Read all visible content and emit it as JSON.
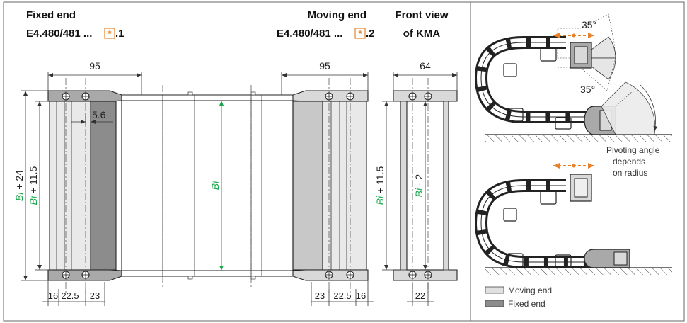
{
  "headers": {
    "fixed_end": "Fixed end",
    "fixed_part": "E4.480/481 ...",
    "fixed_suffix": ".1",
    "moving_end": "Moving end",
    "moving_part": "E4.480/481 ...",
    "moving_suffix": ".2",
    "front_view_1": "Front view",
    "front_view_2": "of KMA"
  },
  "dimensions": {
    "left_width": "95",
    "right_width": "95",
    "front_width": "64",
    "offset": "5.6",
    "bottom_left": [
      "16",
      "22.5",
      "23"
    ],
    "bottom_right": [
      "23",
      "22.5",
      "16"
    ],
    "front_bottom": "22"
  },
  "formulas": {
    "bi_plus_24_var": "Bi",
    "bi_plus_24_rest": " + 24",
    "bi_plus_115_var": "Bi",
    "bi_plus_115_rest": " + 11.5",
    "bi_center": "Bi",
    "front_plus_115_var": "Bi",
    "front_plus_115_rest": " + 11.5",
    "front_minus_2_var": "Bi",
    "front_minus_2_rest": " - 2"
  },
  "angles": {
    "top": "35°",
    "bottom": "35°"
  },
  "notes": {
    "line1": "Pivoting angle",
    "line2": "depends",
    "line3": "on radius"
  },
  "legend": {
    "moving": "Moving end",
    "fixed": "Fixed end"
  },
  "colors": {
    "orange": "#e8822a",
    "green": "#1aa84a",
    "light_gray": "#d9d9d9",
    "mid_gray": "#a9a9a9",
    "dark_gray": "#8c8c8c"
  }
}
